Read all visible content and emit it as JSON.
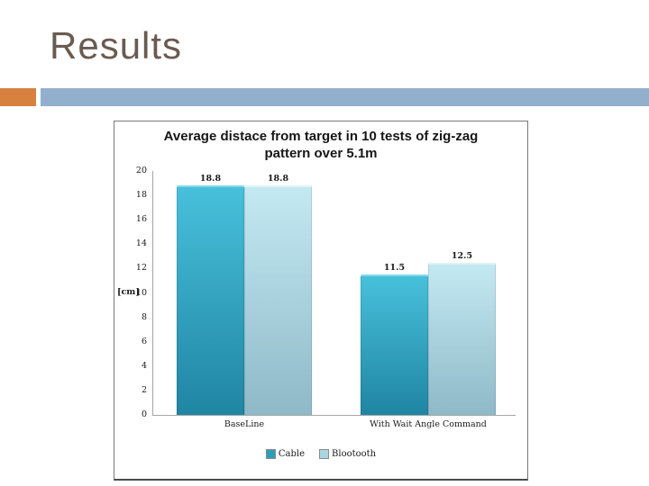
{
  "slide": {
    "title": "Results"
  },
  "accent": {
    "orange": "#d8813e",
    "blue": "#92b0cd"
  },
  "chart_data": {
    "type": "bar",
    "title": "Average distace from target in 10 tests of zig-zag pattern over 5.1m",
    "title_lines": [
      "Average distace from target in 10 tests of zig-zag",
      "pattern over 5.1m"
    ],
    "categories": [
      "BaseLine",
      "With Wait Angle Command"
    ],
    "series": [
      {
        "name": "Cable",
        "values": [
          18.8,
          11.5
        ],
        "color_top": "#48c0db",
        "color_bottom": "#1f85a3",
        "color_cap": "#7fd9e8",
        "legend_color": "#2f9db9"
      },
      {
        "name": "Blootooth",
        "values": [
          18.8,
          12.5
        ],
        "color_top": "#c3e9f2",
        "color_bottom": "#8fb9c8",
        "color_cap": "#ddf3f8",
        "legend_color": "#a9d6e0"
      }
    ],
    "xlabel": "",
    "ylabel": "[cm]",
    "ylim": [
      0,
      20
    ],
    "ytick_step": 2,
    "grid": false,
    "legend_position": "bottom"
  }
}
